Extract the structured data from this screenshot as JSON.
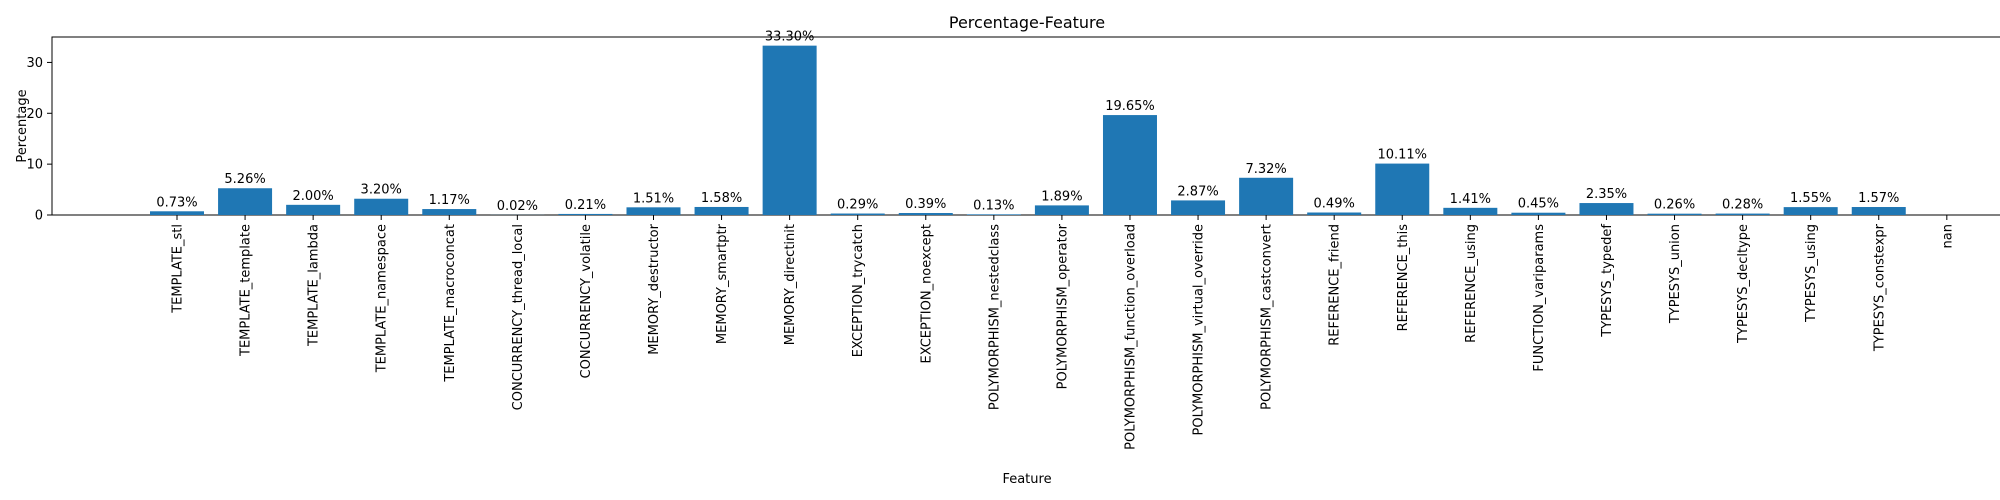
{
  "chart_data": {
    "type": "bar",
    "title": "Percentage-Feature",
    "xlabel": "Feature",
    "ylabel": "Percentage",
    "ylim": [
      0,
      35
    ],
    "yticks": [
      0,
      10,
      20,
      30
    ],
    "grid": false,
    "bar_color": "#1f77b4",
    "categories": [
      "TEMPLATE_stl",
      "TEMPLATE_template",
      "TEMPLATE_lambda",
      "TEMPLATE_namespace",
      "TEMPLATE_macroconcat",
      "CONCURRENCY_thread_local",
      "CONCURRENCY_volatile",
      "MEMORY_destructor",
      "MEMORY_smartptr",
      "MEMORY_directinit",
      "EXCEPTION_trycatch",
      "EXCEPTION_noexcept",
      "POLYMORPHISM_nestedclass",
      "POLYMORPHISM_operator",
      "POLYMORPHISM_function_overload",
      "POLYMORPHISM_virtual_override",
      "POLYMORPHISM_castconvert",
      "REFERENCE_friend",
      "REFERENCE_this",
      "REFERENCE_using",
      "FUNCTION_variparams",
      "TYPESYS_typedef",
      "TYPESYS_union",
      "TYPESYS_decltype",
      "TYPESYS_using",
      "TYPESYS_constexpr",
      "nan"
    ],
    "values": [
      0.73,
      5.26,
      2.0,
      3.2,
      1.17,
      0.02,
      0.21,
      1.51,
      1.58,
      33.3,
      0.29,
      0.39,
      0.13,
      1.89,
      19.65,
      2.87,
      7.32,
      0.49,
      10.11,
      1.41,
      0.45,
      2.35,
      0.26,
      0.28,
      1.55,
      1.57,
      null
    ],
    "data_labels": [
      "0.73%",
      "5.26%",
      "2.00%",
      "3.20%",
      "1.17%",
      "0.02%",
      "0.21%",
      "1.51%",
      "1.58%",
      "33.30%",
      "0.29%",
      "0.39%",
      "0.13%",
      "1.89%",
      "19.65%",
      "2.87%",
      "7.32%",
      "0.49%",
      "10.11%",
      "1.41%",
      "0.45%",
      "2.35%",
      "0.26%",
      "0.28%",
      "1.55%",
      "1.57%",
      ""
    ]
  }
}
